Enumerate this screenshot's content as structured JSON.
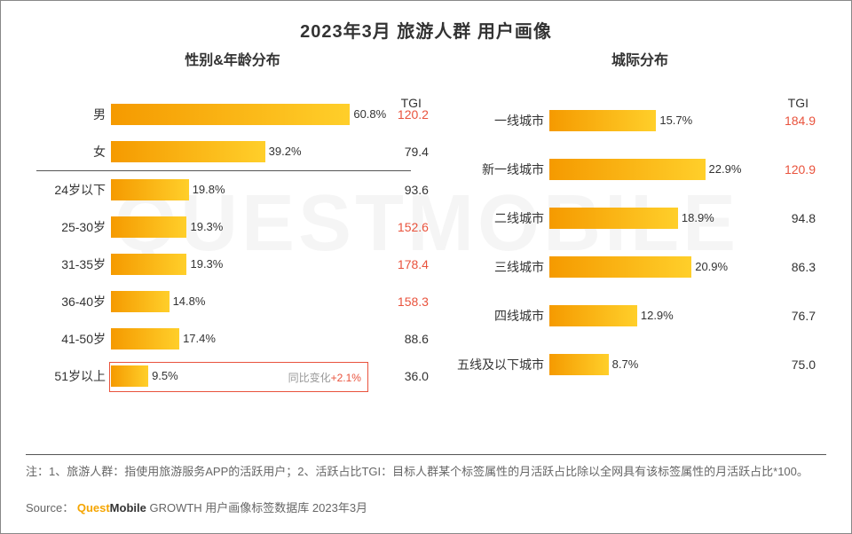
{
  "main_title": "2023年3月 旅游人群 用户画像",
  "watermark": "QUESTMOBILE",
  "tgi_header": "TGI",
  "colors": {
    "bar_start": "#f59a00",
    "bar_end": "#ffcf2a",
    "tgi_normal": "#333333",
    "tgi_high": "#e9533d",
    "highlight_border": "#e9533d",
    "text_grey": "#999999"
  },
  "left": {
    "title": "性别&年龄分布",
    "max_pct": 65,
    "rows_gender": [
      {
        "label": "男",
        "pct": 60.8,
        "pct_label": "60.8%",
        "tgi": "120.2",
        "tgi_high": true
      },
      {
        "label": "女",
        "pct": 39.2,
        "pct_label": "39.2%",
        "tgi": "79.4",
        "tgi_high": false
      }
    ],
    "rows_age": [
      {
        "label": "24岁以下",
        "pct": 19.8,
        "pct_label": "19.8%",
        "tgi": "93.6",
        "tgi_high": false
      },
      {
        "label": "25-30岁",
        "pct": 19.3,
        "pct_label": "19.3%",
        "tgi": "152.6",
        "tgi_high": true
      },
      {
        "label": "31-35岁",
        "pct": 19.3,
        "pct_label": "19.3%",
        "tgi": "178.4",
        "tgi_high": true
      },
      {
        "label": "36-40岁",
        "pct": 14.8,
        "pct_label": "14.8%",
        "tgi": "158.3",
        "tgi_high": true
      },
      {
        "label": "41-50岁",
        "pct": 17.4,
        "pct_label": "17.4%",
        "tgi": "88.6",
        "tgi_high": false
      },
      {
        "label": "51岁以上",
        "pct": 9.5,
        "pct_label": "9.5%",
        "tgi": "36.0",
        "tgi_high": false,
        "highlight": true,
        "yoy_label": "同比变化",
        "yoy_value": "+2.1%"
      }
    ]
  },
  "right": {
    "title": "城际分布",
    "max_pct": 30,
    "rows": [
      {
        "label": "一线城市",
        "pct": 15.7,
        "pct_label": "15.7%",
        "tgi": "184.9",
        "tgi_high": true
      },
      {
        "label": "新一线城市",
        "pct": 22.9,
        "pct_label": "22.9%",
        "tgi": "120.9",
        "tgi_high": true
      },
      {
        "label": "二线城市",
        "pct": 18.9,
        "pct_label": "18.9%",
        "tgi": "94.8",
        "tgi_high": false
      },
      {
        "label": "三线城市",
        "pct": 20.9,
        "pct_label": "20.9%",
        "tgi": "86.3",
        "tgi_high": false
      },
      {
        "label": "四线城市",
        "pct": 12.9,
        "pct_label": "12.9%",
        "tgi": "76.7",
        "tgi_high": false
      },
      {
        "label": "五线及以下城市",
        "pct": 8.7,
        "pct_label": "8.7%",
        "tgi": "75.0",
        "tgi_high": false
      }
    ]
  },
  "footnote": "注：1、旅游人群：指使用旅游服务APP的活跃用户；2、活跃占比TGI：目标人群某个标签属性的月活跃占比除以全网具有该标签属性的月活跃占比*100。",
  "source_prefix": "Source：",
  "source_brand_q": "Quest",
  "source_brand_rest": "Mobile",
  "source_suffix": " GROWTH 用户画像标签数据库 2023年3月"
}
